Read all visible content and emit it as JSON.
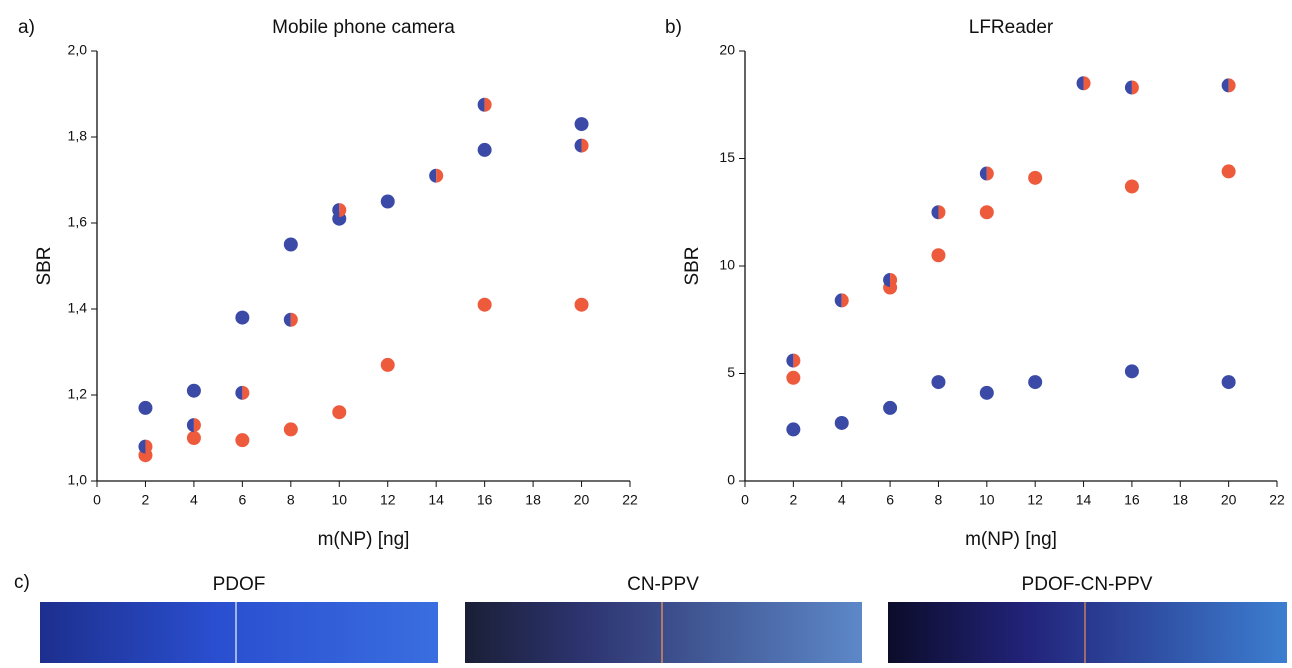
{
  "chart_data": [
    {
      "type": "scatter",
      "label": "a)",
      "title": "Mobile phone camera",
      "xlabel": "m(NP) [ng]",
      "ylabel": "SBR",
      "xlim": [
        0,
        22
      ],
      "xticks": [
        0,
        2,
        4,
        6,
        8,
        10,
        12,
        14,
        16,
        18,
        20,
        22
      ],
      "ylim": [
        1.0,
        2.0
      ],
      "yticks": [
        {
          "value": 1.0,
          "label": "1,0"
        },
        {
          "value": 1.2,
          "label": "1,2"
        },
        {
          "value": 1.4,
          "label": "1,4"
        },
        {
          "value": 1.6,
          "label": "1,6"
        },
        {
          "value": 1.8,
          "label": "1,8"
        },
        {
          "value": 2.0,
          "label": "2,0"
        }
      ],
      "series": [
        {
          "color": "#3b4aa6",
          "x": [
            2,
            4,
            6,
            8,
            10,
            12,
            16,
            20
          ],
          "values": [
            1.17,
            1.21,
            1.38,
            1.55,
            1.61,
            1.65,
            1.77,
            1.83
          ]
        },
        {
          "color": "#ee5a3c",
          "x": [
            2,
            4,
            6,
            8,
            10,
            12,
            16,
            20
          ],
          "values": [
            1.06,
            1.1,
            1.095,
            1.12,
            1.16,
            1.27,
            1.41,
            1.41
          ]
        },
        {
          "color": [
            "#3b4aa6",
            "#ee5a3c"
          ],
          "x": [
            2,
            4,
            6,
            8,
            10,
            14,
            16,
            20
          ],
          "values": [
            1.08,
            1.13,
            1.205,
            1.375,
            1.63,
            1.71,
            1.875,
            1.78
          ]
        }
      ]
    },
    {
      "type": "scatter",
      "label": "b)",
      "title": "LFReader",
      "xlabel": "m(NP) [ng]",
      "ylabel": "SBR",
      "xlim": [
        0,
        22
      ],
      "xticks": [
        0,
        2,
        4,
        6,
        8,
        10,
        12,
        14,
        16,
        18,
        20,
        22
      ],
      "ylim": [
        0,
        20
      ],
      "yticks": [
        0,
        5,
        10,
        15,
        20
      ],
      "series": [
        {
          "color": "#3b4aa6",
          "x": [
            2,
            4,
            6,
            8,
            10,
            12,
            16,
            20
          ],
          "values": [
            2.4,
            2.7,
            3.4,
            4.6,
            4.1,
            4.6,
            5.1,
            4.6
          ]
        },
        {
          "color": "#ee5a3c",
          "x": [
            2,
            6,
            8,
            10,
            12,
            16,
            20
          ],
          "values": [
            4.8,
            9.0,
            10.5,
            12.5,
            14.1,
            13.7,
            14.4
          ]
        },
        {
          "color": [
            "#3b4aa6",
            "#ee5a3c"
          ],
          "x": [
            2,
            4,
            6,
            8,
            10,
            14,
            16,
            20
          ],
          "values": [
            5.6,
            8.4,
            9.35,
            12.5,
            14.3,
            18.5,
            18.3,
            18.4
          ]
        }
      ]
    }
  ],
  "photos": {
    "label": "c)",
    "titles": [
      "PDOF",
      "CN-PPV",
      "PDOF-CN-PPV"
    ]
  }
}
